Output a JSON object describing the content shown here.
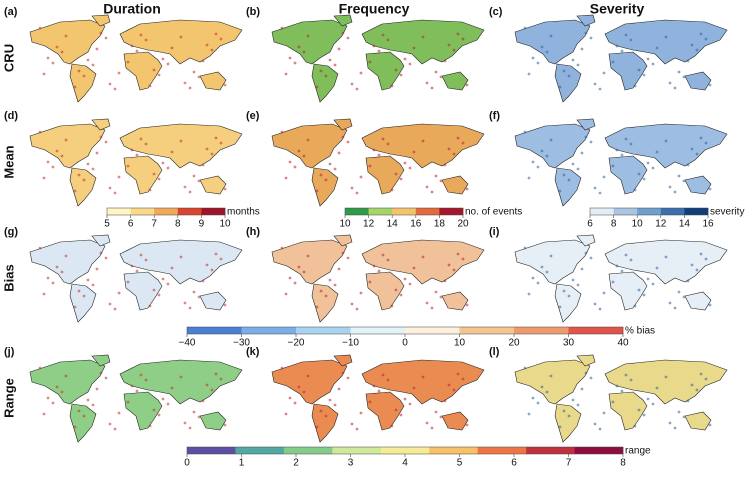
{
  "columns": [
    "Duration",
    "Frequency",
    "Severity"
  ],
  "rows": [
    "CRU",
    "Mean",
    "Bias",
    "Range"
  ],
  "panels": [
    "(a)",
    "(b)",
    "(c)",
    "(d)",
    "(e)",
    "(f)",
    "(g)",
    "(h)",
    "(i)",
    "(j)",
    "(k)",
    "(l)"
  ],
  "colorbars": [
    {
      "unit": "months",
      "ticks": [
        5,
        6,
        7,
        8,
        9,
        10
      ],
      "colors": [
        "#fdf5c4",
        "#f9d98a",
        "#f0a95a",
        "#d9452e",
        "#9e1428"
      ]
    },
    {
      "unit": "no. of events",
      "ticks": [
        10,
        12,
        14,
        16,
        18,
        20
      ],
      "colors": [
        "#2f9a48",
        "#a6d468",
        "#f4c46c",
        "#e26a3c",
        "#a5162c"
      ]
    },
    {
      "unit": "severity",
      "ticks": [
        6,
        8,
        10,
        12,
        14,
        16
      ],
      "colors": [
        "#e4edf6",
        "#a9c5e2",
        "#6f9fcf",
        "#3a70ae",
        "#0f3f78"
      ]
    },
    {
      "unit": "% bias",
      "ticks": [
        {
          "value": -40,
          "label": "−40"
        },
        {
          "value": -30,
          "label": "−30"
        },
        {
          "value": -20,
          "label": "−20"
        },
        {
          "value": -10,
          "label": "−10"
        },
        0,
        10,
        20,
        30,
        40
      ],
      "colors": [
        "#4a7fd4",
        "#7aaee8",
        "#a9d4f0",
        "#e2f2f9",
        "#fdf1de",
        "#f4c58e",
        "#ec9a6e",
        "#e0544a"
      ]
    },
    {
      "unit": "range",
      "ticks": [
        0,
        1,
        2,
        3,
        4,
        5,
        6,
        7,
        8
      ],
      "colors": [
        "#5e4fa2",
        "#52a9a3",
        "#84cc8a",
        "#cfe99a",
        "#f6ec98",
        "#f8c068",
        "#ee7446",
        "#c0303e",
        "#8e0d3f"
      ]
    }
  ]
}
